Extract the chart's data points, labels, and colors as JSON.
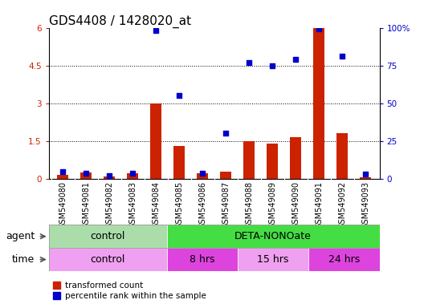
{
  "title": "GDS4408 / 1428020_at",
  "samples": [
    "GSM549080",
    "GSM549081",
    "GSM549082",
    "GSM549083",
    "GSM549084",
    "GSM549085",
    "GSM549086",
    "GSM549087",
    "GSM549088",
    "GSM549089",
    "GSM549090",
    "GSM549091",
    "GSM549092",
    "GSM549093"
  ],
  "red_values": [
    0.15,
    0.25,
    0.08,
    0.22,
    3.0,
    1.3,
    0.2,
    0.28,
    1.5,
    1.4,
    1.65,
    6.0,
    1.8,
    0.07
  ],
  "blue_pct": [
    4.5,
    3.6,
    2.0,
    3.5,
    98.0,
    55.0,
    3.5,
    30.0,
    77.0,
    75.0,
    79.0,
    99.0,
    81.0,
    3.0
  ],
  "left_ylim": [
    0,
    6
  ],
  "right_ylim": [
    0,
    100
  ],
  "left_yticks": [
    0,
    1.5,
    3.0,
    4.5,
    6.0
  ],
  "left_yticklabels": [
    "0",
    "1.5",
    "3",
    "4.5",
    "6"
  ],
  "right_yticks": [
    0,
    25,
    50,
    75,
    100
  ],
  "right_yticklabels": [
    "0",
    "25",
    "50",
    "75",
    "100%"
  ],
  "agent_groups": [
    {
      "label": "control",
      "start": 0,
      "end": 5,
      "color": "#aaddaa"
    },
    {
      "label": "DETA-NONOate",
      "start": 5,
      "end": 14,
      "color": "#44dd44"
    }
  ],
  "time_groups": [
    {
      "label": "control",
      "start": 0,
      "end": 5,
      "color": "#f0a0f0"
    },
    {
      "label": "8 hrs",
      "start": 5,
      "end": 8,
      "color": "#dd44dd"
    },
    {
      "label": "15 hrs",
      "start": 8,
      "end": 11,
      "color": "#f0a0f0"
    },
    {
      "label": "24 hrs",
      "start": 11,
      "end": 14,
      "color": "#dd44dd"
    }
  ],
  "red_color": "#cc2200",
  "blue_color": "#0000cc",
  "bar_bg": "#d0d0d0",
  "title_fontsize": 11,
  "tick_fontsize": 7.5,
  "label_fontsize": 9,
  "row_label_fontsize": 9
}
